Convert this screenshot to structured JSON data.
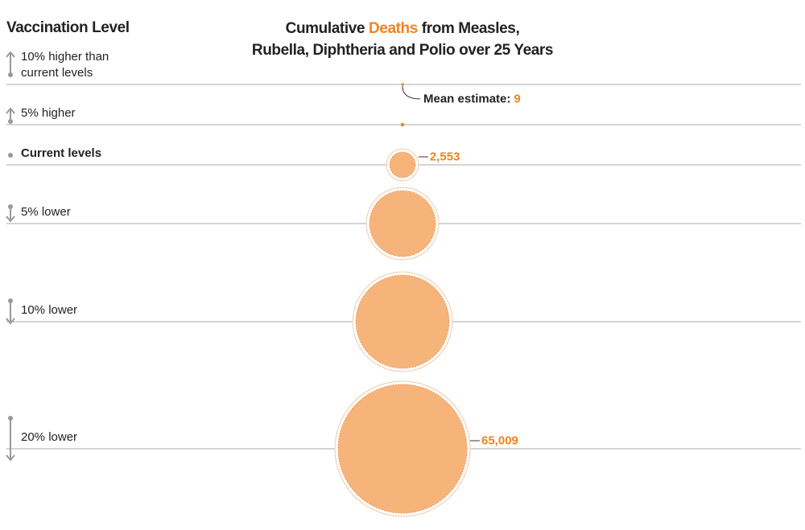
{
  "chart_data": {
    "type": "bubble",
    "title": [
      [
        "Cumulative ",
        "Deaths",
        " from Measles,"
      ],
      [
        "Rubella, Diphtheria and Polio over 25 Years"
      ]
    ],
    "y_label": "Vaccination Level",
    "categories": [
      "10% higher than current levels",
      "5% higher",
      "Current levels",
      "5% lower",
      "10% lower",
      "20% lower"
    ],
    "values": [
      9,
      40,
      2553,
      17000,
      34000,
      65009
    ],
    "value_labels": [
      "9",
      null,
      "2,553",
      null,
      null,
      "65,009"
    ],
    "annotation": "Mean estimate:",
    "color": "#f6b47b",
    "highlight_color": "#f0831e"
  }
}
